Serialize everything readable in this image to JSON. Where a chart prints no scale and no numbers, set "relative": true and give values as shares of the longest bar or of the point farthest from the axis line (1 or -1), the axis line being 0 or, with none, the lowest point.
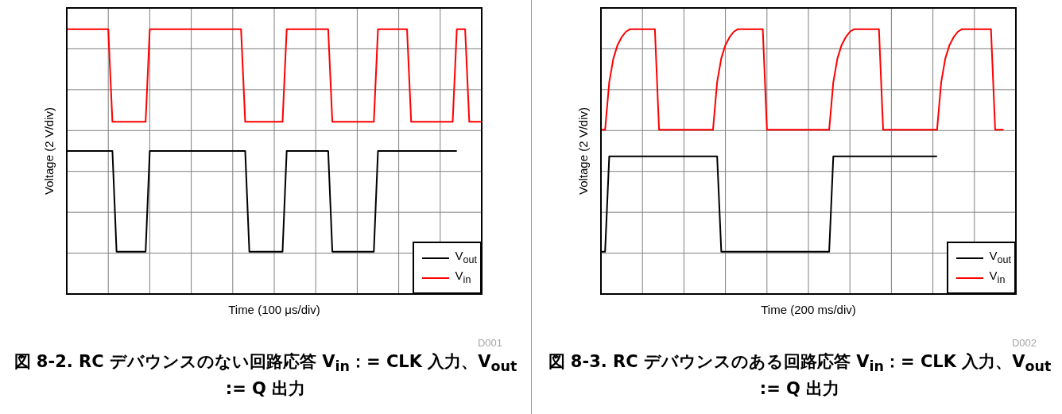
{
  "chart_data": [
    {
      "type": "line",
      "title": "図 8-2. RC デバウンスのない回路応答 V$_{in}$：= CLK 入力、V$_{out}$ := Q 出力",
      "xlabel": "Time (100 μs/div)",
      "ylabel": "Voltage (2 V/div)",
      "annotations": [
        "D001"
      ],
      "relative": true,
      "grid": true,
      "legend": "bottom right",
      "categories": [
        null,
        null,
        null,
        null,
        null,
        null,
        null,
        null,
        null,
        null,
        null,
        null,
        null,
        null,
        null,
        null,
        null,
        null,
        null,
        null,
        null,
        null,
        null,
        null,
        null,
        null,
        null,
        null,
        null,
        null,
        null,
        null,
        null,
        null,
        null,
        null,
        null,
        null,
        null,
        null,
        null,
        null,
        null,
        null,
        null,
        null,
        null,
        null,
        null,
        null,
        null,
        null,
        null,
        null,
        null,
        null,
        null,
        null,
        null,
        null,
        null,
        null,
        null,
        null,
        null,
        null,
        null,
        null,
        null,
        null,
        null,
        null,
        null,
        null,
        null,
        null,
        null,
        null,
        null,
        null,
        null,
        null,
        null,
        null,
        null,
        null,
        null,
        null,
        null,
        null,
        null,
        null,
        null,
        null,
        null,
        null,
        null,
        null,
        null,
        null,
        null
      ],
      "series": [
        {
          "name": "V$_{out}$",
          "color": "#000000",
          "values": [
            0.54,
            0.54,
            0.54,
            0.54,
            0.54,
            0.54,
            0.54,
            0.54,
            0.54,
            0.54,
            0.54,
            0.54,
            0.16,
            0.16,
            0.16,
            0.16,
            0.16,
            0.16,
            0.16,
            0.16,
            0.54,
            0.54,
            0.54,
            0.54,
            0.54,
            0.54,
            0.54,
            0.54,
            0.54,
            0.54,
            0.54,
            0.54,
            0.54,
            0.54,
            0.54,
            0.54,
            0.54,
            0.54,
            0.54,
            0.54,
            0.54,
            0.54,
            0.54,
            0.54,
            0.16,
            0.16,
            0.16,
            0.16,
            0.16,
            0.16,
            0.16,
            0.16,
            0.16,
            0.54,
            0.54,
            0.54,
            0.54,
            0.54,
            0.54,
            0.54,
            0.54,
            0.54,
            0.54,
            0.54,
            0.16,
            0.16,
            0.16,
            0.16,
            0.16,
            0.16,
            0.16,
            0.16,
            0.16,
            0.16,
            0.16,
            0.54,
            0.54,
            0.54,
            0.54,
            0.54,
            0.54,
            0.54,
            0.54,
            0.54,
            0.54,
            0.54,
            0.54,
            0.54,
            0.54,
            0.54,
            0.54,
            0.54,
            0.54,
            0.54,
            0.54,
            null,
            null,
            null,
            null,
            null,
            null
          ]
        },
        {
          "name": "V$_{in}$",
          "color": "#ff0000",
          "values": [
            1,
            1,
            1,
            1,
            1,
            1,
            1,
            1,
            1,
            1,
            1,
            0.65,
            0.65,
            0.65,
            0.65,
            0.65,
            0.65,
            0.65,
            0.65,
            0.65,
            1,
            1,
            1,
            1,
            1,
            1,
            1,
            1,
            1,
            1,
            1,
            1,
            1,
            1,
            1,
            1,
            1,
            1,
            1,
            1,
            1,
            1,
            1,
            0.65,
            0.65,
            0.65,
            0.65,
            0.65,
            0.65,
            0.65,
            0.65,
            0.65,
            0.65,
            1,
            1,
            1,
            1,
            1,
            1,
            1,
            1,
            1,
            1,
            1,
            0.65,
            0.65,
            0.65,
            0.65,
            0.65,
            0.65,
            0.65,
            0.65,
            0.65,
            0.65,
            0.65,
            1,
            1,
            1,
            1,
            1,
            1,
            1,
            1,
            0.65,
            0.65,
            0.65,
            0.65,
            0.65,
            0.65,
            0.65,
            0.65,
            0.65,
            0.65,
            0.65,
            1,
            1,
            1,
            0.65,
            0.65,
            0.65,
            0.65
          ]
        }
      ]
    },
    {
      "type": "line",
      "title": "図 8-3. RC デバウンスのある回路応答 V$_{in}$：= CLK 入力、V$_{out}$ := Q 出力",
      "xlabel": "Time (200 ms/div)",
      "ylabel": "Voltage (2 V/div)",
      "annotations": [
        "D002"
      ],
      "relative": true,
      "grid": true,
      "legend": "bottom right",
      "categories": [
        null,
        null,
        null,
        null,
        null,
        null,
        null,
        null,
        null,
        null,
        null,
        null,
        null,
        null,
        null,
        null,
        null,
        null,
        null,
        null,
        null,
        null,
        null,
        null,
        null,
        null,
        null,
        null,
        null,
        null,
        null,
        null,
        null,
        null,
        null,
        null,
        null,
        null,
        null,
        null,
        null,
        null,
        null,
        null,
        null,
        null,
        null,
        null,
        null,
        null,
        null,
        null,
        null,
        null,
        null,
        null,
        null,
        null,
        null,
        null,
        null,
        null,
        null,
        null,
        null,
        null,
        null,
        null,
        null,
        null,
        null,
        null,
        null,
        null,
        null,
        null,
        null,
        null,
        null,
        null,
        null,
        null,
        null,
        null,
        null,
        null,
        null,
        null,
        null,
        null,
        null,
        null,
        null,
        null,
        null,
        null,
        null,
        null,
        null,
        null,
        null
      ],
      "series": [
        {
          "name": "V$_{out}$",
          "color": "#000000",
          "values": [
            0.16,
            0.16,
            0.52,
            0.52,
            0.52,
            0.52,
            0.52,
            0.52,
            0.52,
            0.52,
            0.52,
            0.52,
            0.52,
            0.52,
            0.52,
            0.52,
            0.52,
            0.52,
            0.52,
            0.52,
            0.52,
            0.52,
            0.52,
            0.52,
            0.52,
            0.52,
            0.52,
            0.52,
            0.52,
            0.16,
            0.16,
            0.16,
            0.16,
            0.16,
            0.16,
            0.16,
            0.16,
            0.16,
            0.16,
            0.16,
            0.16,
            0.16,
            0.16,
            0.16,
            0.16,
            0.16,
            0.16,
            0.16,
            0.16,
            0.16,
            0.16,
            0.16,
            0.16,
            0.16,
            0.16,
            0.16,
            0.52,
            0.52,
            0.52,
            0.52,
            0.52,
            0.52,
            0.52,
            0.52,
            0.52,
            0.52,
            0.52,
            0.52,
            0.52,
            0.52,
            0.52,
            0.52,
            0.52,
            0.52,
            0.52,
            0.52,
            0.52,
            0.52,
            0.52,
            0.52,
            0.52,
            0.52,
            null,
            null,
            null,
            null,
            null,
            null,
            null,
            null,
            null,
            null,
            null,
            null,
            null,
            null,
            null,
            null,
            null,
            null,
            null
          ]
        },
        {
          "name": "V$_{in}$",
          "color": "#ff0000",
          "values": [
            0.62,
            0.62,
            0.8,
            0.89,
            0.94,
            0.97,
            0.99,
            1,
            1,
            1,
            1,
            1,
            1,
            1,
            0.62,
            0.62,
            0.62,
            0.62,
            0.62,
            0.62,
            0.62,
            0.62,
            0.62,
            0.62,
            0.62,
            0.62,
            0.62,
            0.62,
            0.8,
            0.89,
            0.94,
            0.97,
            0.99,
            1,
            1,
            1,
            1,
            1,
            1,
            1,
            0.62,
            0.62,
            0.62,
            0.62,
            0.62,
            0.62,
            0.62,
            0.62,
            0.62,
            0.62,
            0.62,
            0.62,
            0.62,
            0.62,
            0.62,
            0.62,
            0.8,
            0.89,
            0.94,
            0.97,
            0.99,
            1,
            1,
            1,
            1,
            1,
            1,
            1,
            0.62,
            0.62,
            0.62,
            0.62,
            0.62,
            0.62,
            0.62,
            0.62,
            0.62,
            0.62,
            0.62,
            0.62,
            0.62,
            0.62,
            0.8,
            0.89,
            0.94,
            0.97,
            0.99,
            1,
            1,
            1,
            1,
            1,
            1,
            1,
            1,
            0.62,
            0.62,
            0.62,
            null,
            null,
            null
          ]
        }
      ]
    }
  ]
}
